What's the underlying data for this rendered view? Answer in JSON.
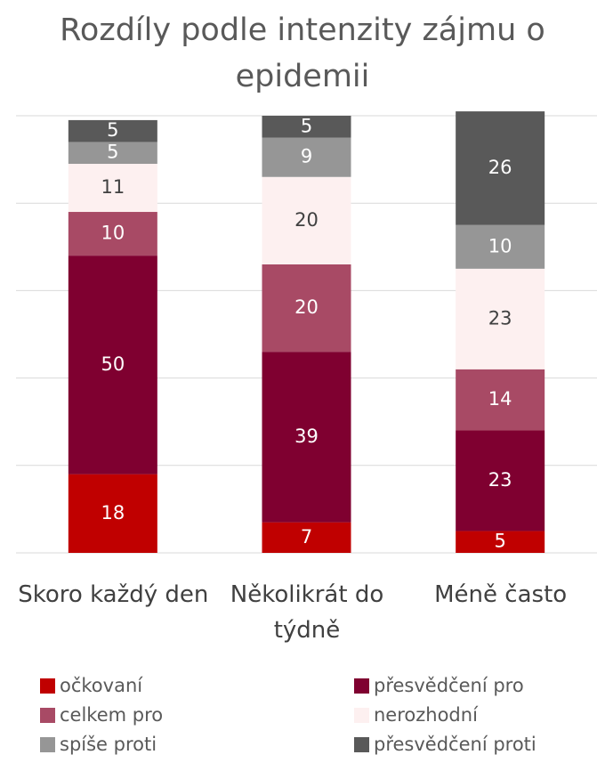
{
  "chart_data": {
    "type": "stacked_bar",
    "title": "Rozdíly podle intenzity zájmu o epidemii",
    "categories": [
      "Skoro každý den",
      "Několikrát do týdně",
      "Méně často"
    ],
    "series": [
      {
        "name": "očkovaní",
        "color": "#c00000",
        "values": [
          18,
          7,
          5
        ]
      },
      {
        "name": "přesvědčení pro",
        "color": "#7f0030",
        "values": [
          50,
          39,
          23
        ]
      },
      {
        "name": "celkem pro",
        "color": "#a84a65",
        "values": [
          10,
          20,
          14
        ]
      },
      {
        "name": "nerozhodní",
        "color": "#fdf0f0",
        "values": [
          11,
          20,
          23
        ]
      },
      {
        "name": "spíše proti",
        "color": "#969696",
        "values": [
          5,
          9,
          10
        ]
      },
      {
        "name": "přesvědčení proti",
        "color": "#595959",
        "values": [
          5,
          5,
          26
        ]
      }
    ],
    "ylim": [
      0,
      100
    ],
    "yticks": [
      0,
      20,
      40,
      60,
      80,
      100
    ],
    "grid": true
  }
}
